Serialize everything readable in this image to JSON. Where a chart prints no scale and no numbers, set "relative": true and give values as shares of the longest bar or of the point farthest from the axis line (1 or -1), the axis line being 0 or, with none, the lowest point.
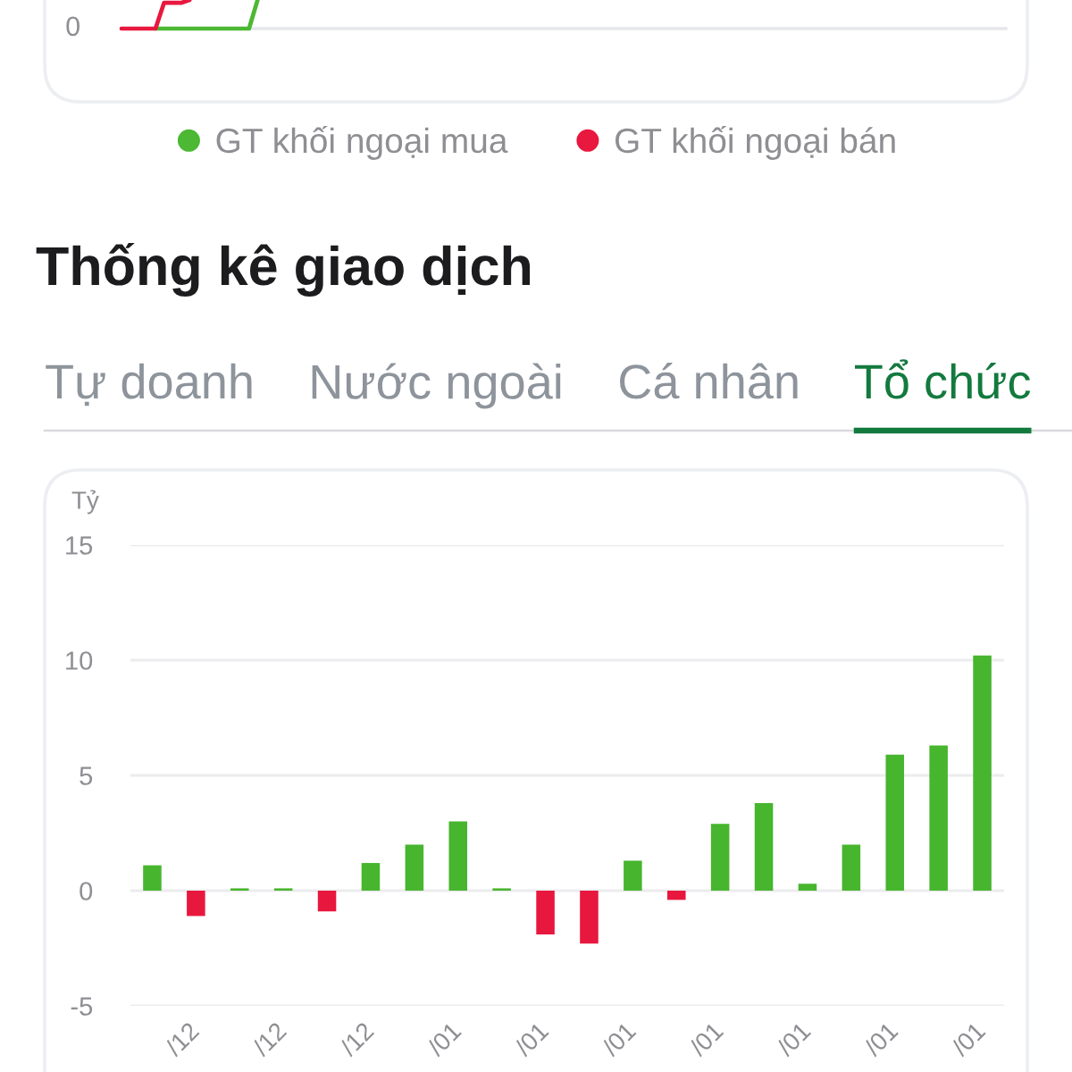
{
  "chart_data": [
    {
      "type": "line",
      "relative": true,
      "categories": [
        null,
        null,
        null,
        null,
        null,
        null,
        null,
        null,
        null,
        null,
        null,
        null,
        null,
        null,
        null,
        null,
        null,
        null,
        null,
        null,
        null,
        null,
        null,
        null,
        null,
        null,
        null,
        null,
        null,
        null,
        null,
        null,
        null,
        null,
        null,
        null,
        null,
        null,
        null,
        null,
        null,
        null,
        null,
        null,
        null,
        null,
        null,
        null,
        null,
        null,
        null,
        null,
        null,
        null,
        null,
        null,
        null,
        null,
        null,
        null,
        null,
        null,
        null,
        null,
        null,
        null,
        null,
        null,
        null,
        null,
        null,
        null,
        null,
        null,
        null,
        null,
        null,
        null,
        null,
        null,
        null,
        null,
        null,
        null,
        null,
        null,
        null,
        null,
        null,
        null,
        null,
        null,
        null,
        null,
        null,
        null,
        null,
        null,
        null,
        null,
        null,
        null,
        null,
        null,
        null
      ],
      "series": [
        {
          "name": "GT khối ngoại mua",
          "color": "#4cb834",
          "values": [
            null,
            null,
            null,
            null,
            0,
            0,
            0,
            0,
            0,
            0,
            0,
            0,
            0,
            0,
            0,
            0,
            1,
            null,
            null,
            null,
            null,
            null,
            null,
            null,
            null,
            null,
            null,
            null,
            null,
            null,
            null,
            null,
            null,
            null,
            null,
            null,
            null,
            null,
            null,
            null,
            null,
            null,
            null,
            null,
            null,
            null,
            null,
            null,
            null,
            null,
            null,
            null,
            null,
            null,
            null,
            null,
            null,
            null,
            null,
            null,
            null,
            null,
            null,
            null,
            null,
            null,
            null,
            null,
            null,
            null,
            null,
            null,
            null,
            null,
            null,
            null,
            null,
            null,
            null,
            null,
            null,
            null,
            null,
            null,
            null,
            null,
            null,
            null,
            null,
            null,
            null,
            null,
            null,
            null,
            null,
            null,
            null,
            null,
            null,
            null,
            null,
            null,
            null,
            null,
            null
          ]
        },
        {
          "name": "GT khối ngoại bán",
          "color": "#e8183f",
          "values": [
            0,
            0,
            0,
            0,
            0,
            0.9,
            0.9,
            0.9,
            1,
            null,
            null,
            null,
            null,
            null,
            null,
            null,
            null,
            null,
            null,
            null,
            null,
            null,
            null,
            null,
            null,
            null,
            null,
            null,
            null,
            null,
            null,
            null,
            null,
            null,
            null,
            null,
            null,
            null,
            null,
            null,
            null,
            null,
            null,
            null,
            null,
            null,
            null,
            null,
            null,
            null,
            null,
            null,
            null,
            null,
            null,
            null,
            null,
            null,
            null,
            null,
            null,
            null,
            null,
            null,
            null,
            null,
            null,
            null,
            null,
            null,
            null,
            null,
            null,
            null,
            null,
            null,
            null,
            null,
            null,
            null,
            null,
            null,
            null,
            null,
            null,
            null,
            null,
            null,
            null,
            null,
            null,
            null,
            null,
            null,
            null,
            null,
            null,
            null,
            null,
            null,
            null,
            null,
            null,
            null,
            null
          ]
        }
      ],
      "ref_lines": [
        {
          "axis": "y",
          "value": 0,
          "label": "0",
          "color": "#e6e7ea"
        }
      ],
      "legend": "bottom"
    },
    {
      "type": "bar",
      "title": "Thống kê giao dịch",
      "annotations": [
        "Tự doanh",
        "Nước ngoài",
        "Cá nhân",
        "Tổ chức"
      ],
      "ylabel": "Tỷ",
      "categories": [
        null,
        "/12",
        null,
        "/12",
        null,
        "/12",
        null,
        "/01",
        null,
        "/01",
        null,
        "/01",
        null,
        "/01",
        null,
        "/01",
        null,
        "/01",
        null,
        "/01"
      ],
      "values": [
        1.1,
        -1.1,
        0.1,
        0.1,
        -0.9,
        1.2,
        2.0,
        3.0,
        0.1,
        -1.9,
        -2.3,
        1.3,
        -0.4,
        2.9,
        3.8,
        0.3,
        2.0,
        5.9,
        6.3,
        10.2
      ],
      "colors": [
        "#47b52e",
        "#e8173e",
        "#47b52e",
        "#47b52e",
        "#e8173e",
        "#47b52e",
        "#47b52e",
        "#47b52e",
        "#47b52e",
        "#e8173e",
        "#e8173e",
        "#47b52e",
        "#e8173e",
        "#47b52e",
        "#47b52e",
        "#47b52e",
        "#47b52e",
        "#47b52e",
        "#47b52e",
        "#47b52e"
      ],
      "ylim": [
        -5,
        15
      ],
      "yticks": [
        -5,
        0,
        5,
        10,
        15
      ],
      "grid": "y"
    }
  ]
}
